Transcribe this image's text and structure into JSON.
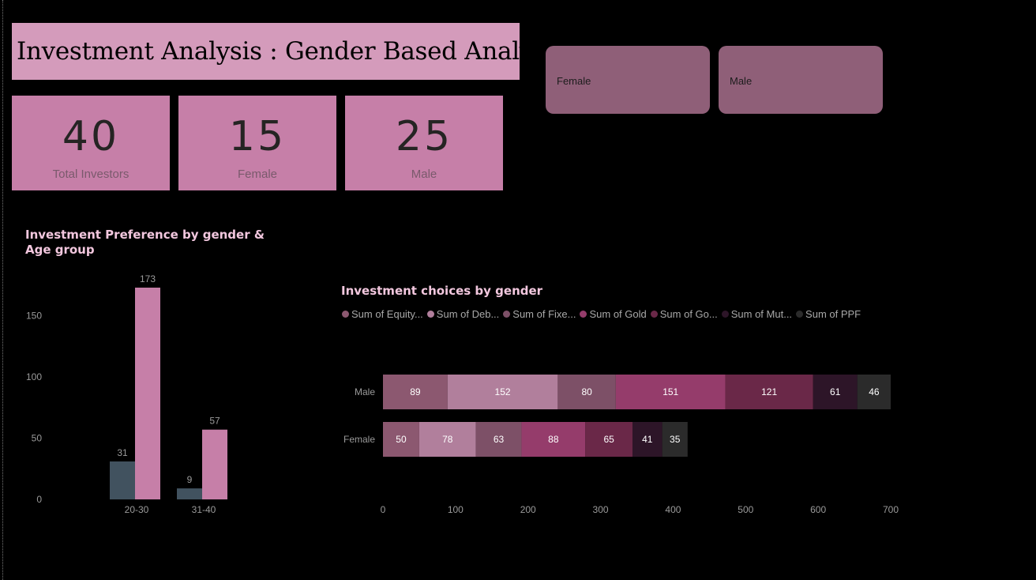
{
  "page_title": "Investment Analysis : Gender Based Analysis",
  "kpis": [
    {
      "value": "40",
      "label": "Total Investors"
    },
    {
      "value": "15",
      "label": "Female"
    },
    {
      "value": "25",
      "label": "Male"
    }
  ],
  "slicer": {
    "items": [
      "Female",
      "Male"
    ]
  },
  "colors": {
    "title_bg": "#d49bbb",
    "kpi_bg": "#c67fa8",
    "slicer_bg": "#8f5f78",
    "female_bar": "#41525f",
    "male_bar": "#c67fa8"
  },
  "chart_data": [
    {
      "type": "bar",
      "title": "Investment Preference by gender & Age group",
      "categories": [
        "20-30",
        "31-40"
      ],
      "series": [
        {
          "values": [
            31,
            9
          ],
          "color": "#41525f"
        },
        {
          "values": [
            173,
            57
          ],
          "color": "#c67fa8"
        }
      ],
      "yticks": [
        "0",
        "50",
        "100",
        "150"
      ],
      "ylim": [
        0,
        180
      ],
      "grid": false
    },
    {
      "type": "bar",
      "orientation": "horizontal",
      "stacked": true,
      "title": "Investment choices by gender",
      "categories": [
        "Male",
        "Female"
      ],
      "series": [
        {
          "name": "Sum of Equity...",
          "values": [
            89,
            50
          ],
          "color": "#8c5870",
          "label_color": "#ffffff"
        },
        {
          "name": "Sum of Deb...",
          "values": [
            152,
            78
          ],
          "color": "#b17f9c",
          "label_color": "#ffffff"
        },
        {
          "name": "Sum of Fixe...",
          "values": [
            80,
            63
          ],
          "color": "#7d5067",
          "label_color": "#ffffff"
        },
        {
          "name": "Sum of Gold",
          "values": [
            151,
            88
          ],
          "color": "#953c6b",
          "label_color": "#ffffff"
        },
        {
          "name": "Sum of Go...",
          "values": [
            121,
            65
          ],
          "color": "#6a2848",
          "label_color": "#ffffff"
        },
        {
          "name": "Sum of Mut...",
          "values": [
            61,
            41
          ],
          "color": "#2d1528",
          "label_color": "#ffffff"
        },
        {
          "name": "Sum of PPF",
          "values": [
            46,
            35
          ],
          "color": "#2b2b2b",
          "label_color": "#ffffff"
        }
      ],
      "xticks": [
        "0",
        "100",
        "200",
        "300",
        "400",
        "500",
        "600",
        "700"
      ],
      "xlim": [
        0,
        700
      ],
      "legend_position": "top",
      "grid": false
    }
  ]
}
